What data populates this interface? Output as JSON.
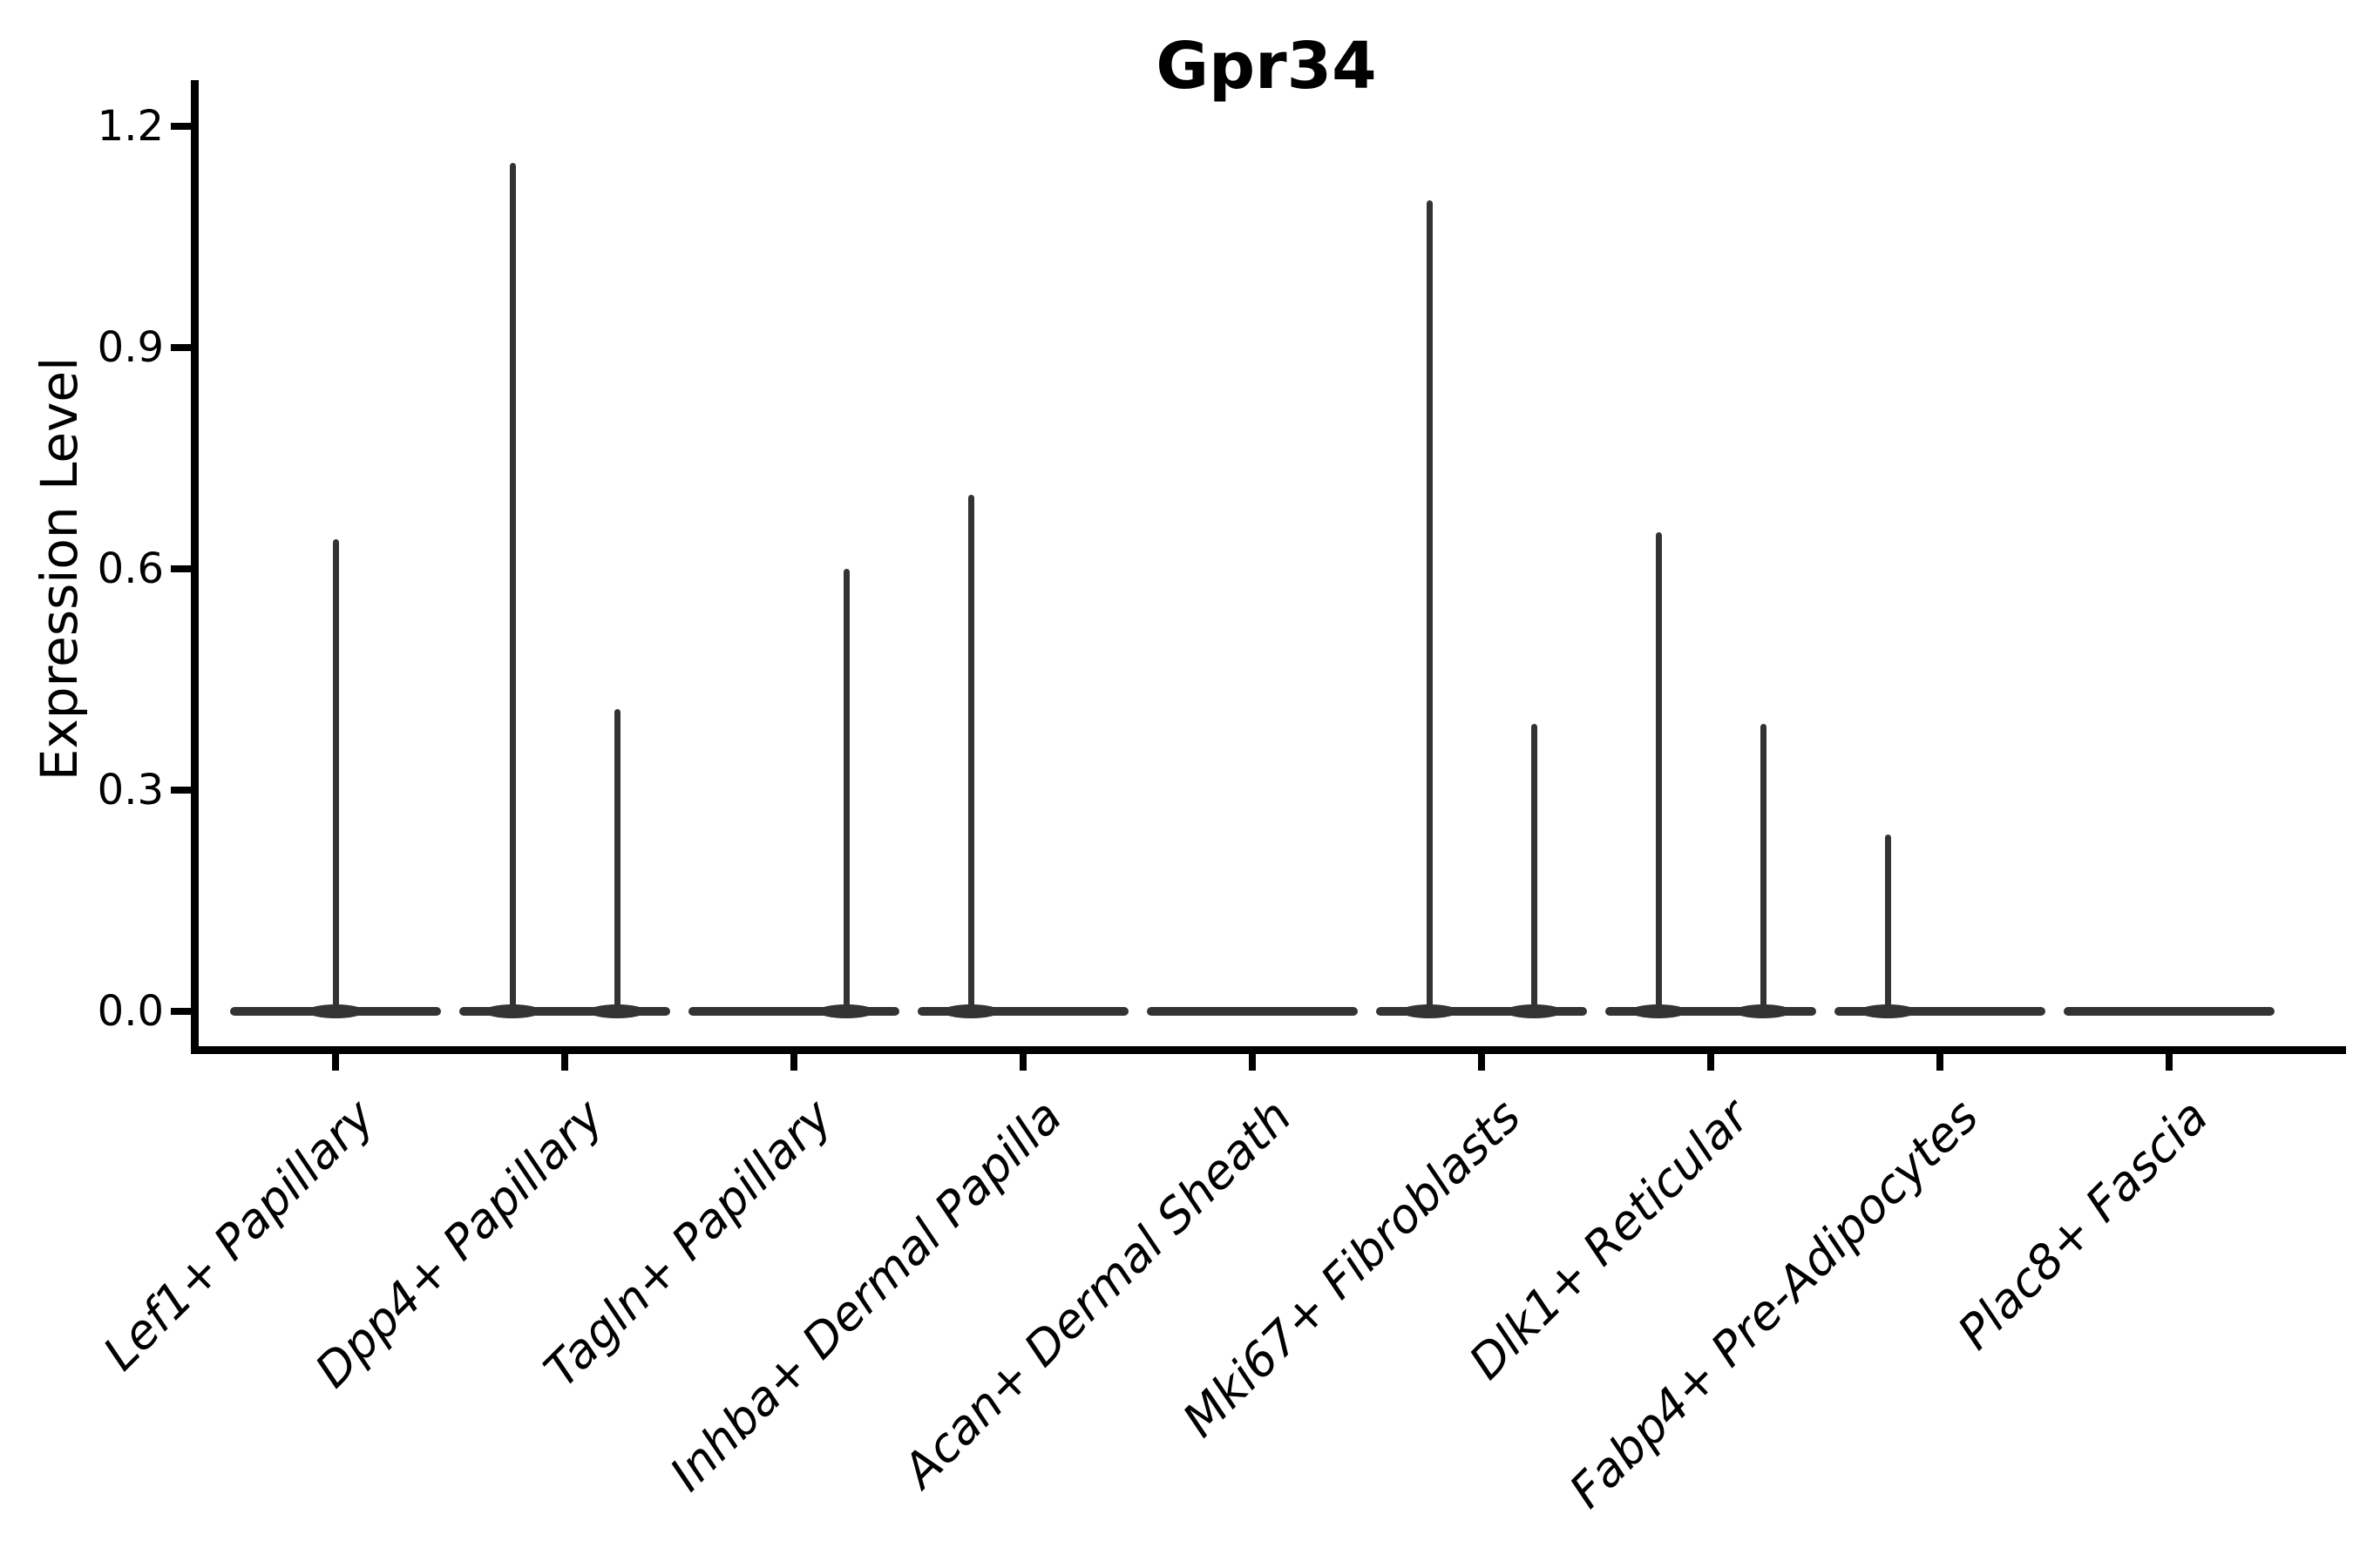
{
  "chart_data": {
    "type": "violin",
    "title": "Gpr34",
    "ylabel": "Expression Level",
    "xlabel": "",
    "grid": false,
    "legend": "none",
    "ylim": [
      -0.05,
      1.26
    ],
    "yticks": [
      {
        "value": 0.0,
        "label": "0.0"
      },
      {
        "value": 0.3,
        "label": "0.3"
      },
      {
        "value": 0.6,
        "label": "0.6"
      },
      {
        "value": 0.9,
        "label": "0.9"
      },
      {
        "value": 1.2,
        "label": "1.2"
      }
    ],
    "categories": [
      "Lef1+ Papillary",
      "Dpp4+ Papillary",
      "Tagln+ Papillary",
      "Inhba+ Dermal Papilla",
      "Acan+ Dermal Sheath",
      "Mki67+ Fibroblasts",
      "Dlk1+ Reticular",
      "Fabp4+ Pre-Adipocytes",
      "Plac8+ Fascia"
    ],
    "violins": [
      {
        "category": "Lef1+ Papillary",
        "spikes": [
          {
            "side": "center",
            "value": 0.64
          }
        ]
      },
      {
        "category": "Dpp4+ Papillary",
        "spikes": [
          {
            "side": "left",
            "value": 1.15
          },
          {
            "side": "right",
            "value": 0.41
          }
        ]
      },
      {
        "category": "Tagln+ Papillary",
        "spikes": [
          {
            "side": "right",
            "value": 0.6
          }
        ]
      },
      {
        "category": "Inhba+ Dermal Papilla",
        "spikes": [
          {
            "side": "left",
            "value": 0.7
          }
        ]
      },
      {
        "category": "Acan+ Dermal Sheath",
        "spikes": []
      },
      {
        "category": "Mki67+ Fibroblasts",
        "spikes": [
          {
            "side": "left",
            "value": 1.1
          },
          {
            "side": "right",
            "value": 0.39
          }
        ]
      },
      {
        "category": "Dlk1+ Reticular",
        "spikes": [
          {
            "side": "left",
            "value": 0.65
          },
          {
            "side": "right",
            "value": 0.39
          }
        ]
      },
      {
        "category": "Fabp4+ Pre-Adipocytes",
        "spikes": [
          {
            "side": "left",
            "value": 0.24
          }
        ]
      },
      {
        "category": "Plac8+ Fascia",
        "spikes": []
      }
    ],
    "colors": {
      "violin_line": "#333333",
      "axis": "#000000",
      "text": "#000000",
      "background": "#ffffff"
    }
  }
}
